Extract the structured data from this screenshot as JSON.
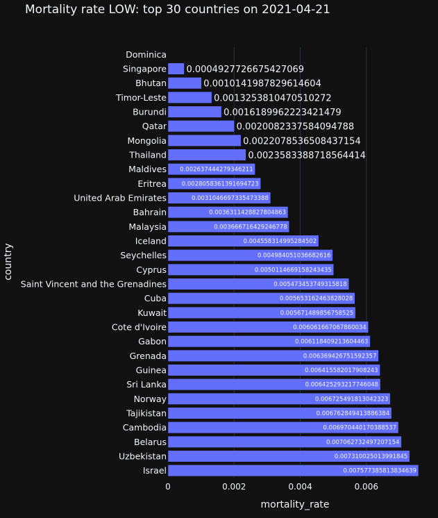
{
  "theme": {
    "background": "#111111",
    "bar_color": "#636EFA",
    "bar_outline": "#111111",
    "grid_color": "#283442",
    "text_color": "#f2f5fa"
  },
  "chart_data": {
    "type": "bar",
    "orientation": "horizontal",
    "title": "Mortality rate LOW: top 30 countries on 2021-04-21",
    "xlabel": "mortality_rate",
    "ylabel": "country",
    "xlim": [
      0,
      0.0076
    ],
    "xticks": [
      {
        "value": 0,
        "label": "0"
      },
      {
        "value": 0.002,
        "label": "0.002"
      },
      {
        "value": 0.004,
        "label": "0.004"
      },
      {
        "value": 0.006,
        "label": "0.006"
      }
    ],
    "grid": true,
    "bars": [
      {
        "category": "Dominica",
        "value": 0,
        "label": ""
      },
      {
        "category": "Singapore",
        "value": 0.0004927726675427069,
        "label": "0.0004927726675427069"
      },
      {
        "category": "Bhutan",
        "value": 0.0010141987829614604,
        "label": "0.0010141987829614604"
      },
      {
        "category": "Timor-Leste",
        "value": 0.0013253810470510272,
        "label": "0.0013253810470510272"
      },
      {
        "category": "Burundi",
        "value": 0.0016189962223421479,
        "label": "0.0016189962223421479"
      },
      {
        "category": "Qatar",
        "value": 0.0020082337584094788,
        "label": "0.0020082337584094788"
      },
      {
        "category": "Mongolia",
        "value": 0.0022078536508437154,
        "label": "0.0022078536508437154"
      },
      {
        "category": "Thailand",
        "value": 0.0023583388718564414,
        "label": "0.0023583388718564414"
      },
      {
        "category": "Maldives",
        "value": 0.002637444279346211,
        "label": "0.002637444279346211"
      },
      {
        "category": "Eritrea",
        "value": 0.0028058361391694723,
        "label": "0.0028058361391694723"
      },
      {
        "category": "United Arab Emirates",
        "value": 0.0031046697335473388,
        "label": "0.0031046697335473388"
      },
      {
        "category": "Bahrain",
        "value": 0.0036311428827804863,
        "label": "0.0036311428827804863"
      },
      {
        "category": "Malaysia",
        "value": 0.003666716429246778,
        "label": "0.003666716429246778"
      },
      {
        "category": "Iceland",
        "value": 0.004558314995284502,
        "label": "0.004558314995284502"
      },
      {
        "category": "Seychelles",
        "value": 0.004984051036682616,
        "label": "0.004984051036682616"
      },
      {
        "category": "Cyprus",
        "value": 0.005011466915824344,
        "label": "0.0050114669158243435"
      },
      {
        "category": "Saint Vincent and the Grenadines",
        "value": 0.005473453749315818,
        "label": "0.005473453749315818"
      },
      {
        "category": "Cuba",
        "value": 0.005653162463828028,
        "label": "0.005653162463828028"
      },
      {
        "category": "Kuwait",
        "value": 0.005671489856758525,
        "label": "0.005671489856758525"
      },
      {
        "category": "Cote d'Ivoire",
        "value": 0.006061667067860034,
        "label": "0.006061667067860034"
      },
      {
        "category": "Gabon",
        "value": 0.006118409213604463,
        "label": "0.006118409213604463"
      },
      {
        "category": "Grenada",
        "value": 0.006369426751592357,
        "label": "0.006369426751592357"
      },
      {
        "category": "Guinea",
        "value": 0.006415582017908243,
        "label": "0.006415582017908243"
      },
      {
        "category": "Sri Lanka",
        "value": 0.006425293217746048,
        "label": "0.006425293217746048"
      },
      {
        "category": "Norway",
        "value": 0.006725491813042323,
        "label": "0.006725491813042323"
      },
      {
        "category": "Tajikistan",
        "value": 0.006762849413886384,
        "label": "0.006762849413886384"
      },
      {
        "category": "Cambodia",
        "value": 0.006970440170388537,
        "label": "0.006970440170388537"
      },
      {
        "category": "Belarus",
        "value": 0.007062732497207154,
        "label": "0.007062732497207154"
      },
      {
        "category": "Uzbekistan",
        "value": 0.007310025013991845,
        "label": "0.007310025013991845"
      },
      {
        "category": "Israel",
        "value": 0.007577385813834639,
        "label": "0.007577385813834639"
      }
    ]
  }
}
